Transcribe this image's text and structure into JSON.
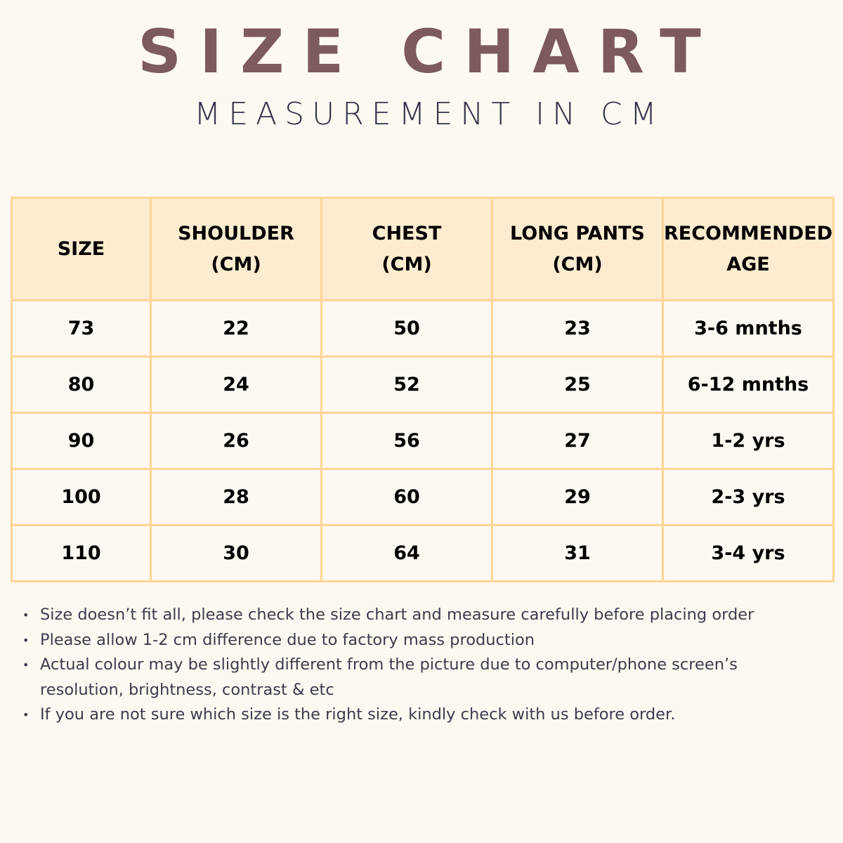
{
  "title": "SIZE CHART",
  "subtitle": "MEASUREMENT IN CM",
  "colors": {
    "title": "#7d5a5c",
    "header_bg": "#ffecd0",
    "border": "#fdd596",
    "background": "#fdf8f1"
  },
  "table": {
    "headers": [
      [
        "SIZE",
        ""
      ],
      [
        "SHOULDER",
        "(CM)"
      ],
      [
        "CHEST",
        "(CM)"
      ],
      [
        "LONG PANTS",
        "(CM)"
      ],
      [
        "RECOMMENDED",
        "AGE"
      ]
    ],
    "rows": [
      [
        "73",
        "22",
        "50",
        "23",
        "3-6 mnths"
      ],
      [
        "80",
        "24",
        "52",
        "25",
        "6-12 mnths"
      ],
      [
        "90",
        "26",
        "56",
        "27",
        "1-2 yrs"
      ],
      [
        "100",
        "28",
        "60",
        "29",
        "2-3 yrs"
      ],
      [
        "110",
        "30",
        "64",
        "31",
        "3-4 yrs"
      ]
    ]
  },
  "notes": [
    "Size doesn’t fit all, please check the size chart and measure carefully before placing order",
    "Please allow 1-2 cm difference due to factory mass production",
    "Actual colour may be slightly different from the picture due to computer/phone screen’s resolution, brightness, contrast & etc",
    "If you are not sure which size is the right size, kindly check with us before order."
  ]
}
